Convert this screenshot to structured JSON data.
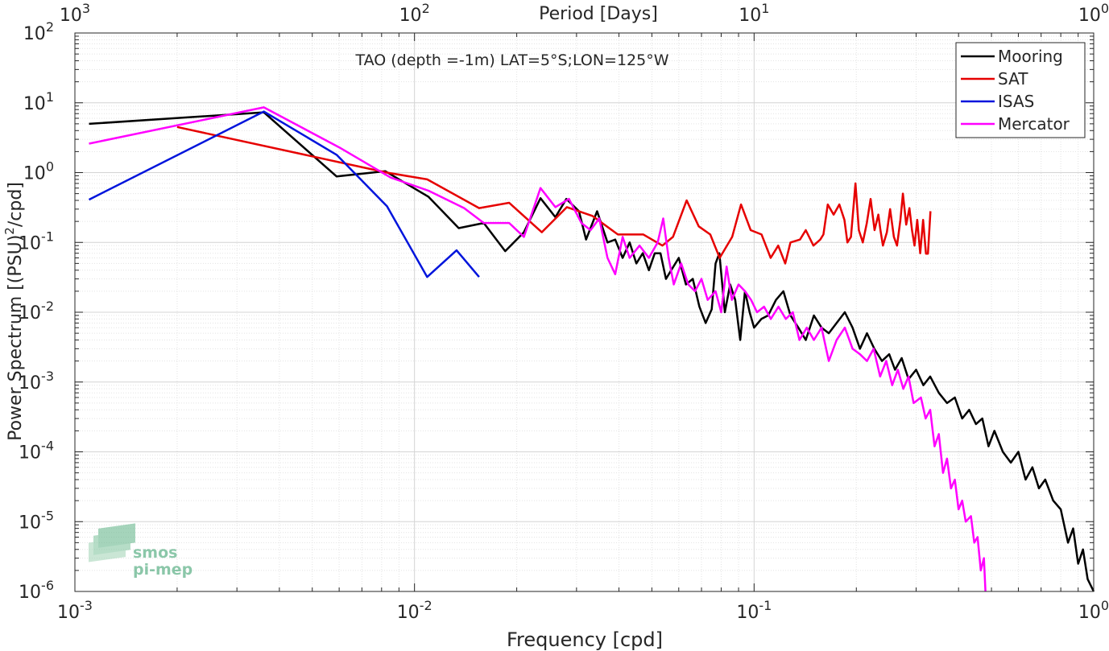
{
  "chart_data": {
    "type": "line",
    "title": "TAO (depth =-1m) LAT=5°S;LON=125°W",
    "xlabel": "Frequency [cpd]",
    "ylabel": "Power Spectrum [(PSU)²/cpd]",
    "ylabel_base": "Power Spectrum [(PSU)",
    "ylabel_sup": "2",
    "ylabel_tail": "/cpd]",
    "top_xlabel": "Period [Days]",
    "xscale": "log",
    "yscale": "log",
    "xlim": [
      0.001,
      1
    ],
    "ylim": [
      1e-06,
      100
    ],
    "grid": true,
    "legend_position": "top-right",
    "x_ticks": [
      {
        "value": 0.001,
        "base": "10",
        "exp": "-3"
      },
      {
        "value": 0.01,
        "base": "10",
        "exp": "-2"
      },
      {
        "value": 0.1,
        "base": "10",
        "exp": "-1"
      },
      {
        "value": 1,
        "base": "10",
        "exp": "0"
      }
    ],
    "top_ticks": [
      {
        "value": 1000,
        "base": "10",
        "exp": "3"
      },
      {
        "value": 100,
        "base": "10",
        "exp": "2"
      },
      {
        "value": 10,
        "base": "10",
        "exp": "1"
      },
      {
        "value": 1,
        "base": "10",
        "exp": "0"
      }
    ],
    "y_ticks": [
      {
        "value": 1e-06,
        "base": "10",
        "exp": "-6"
      },
      {
        "value": 1e-05,
        "base": "10",
        "exp": "-5"
      },
      {
        "value": 0.0001,
        "base": "10",
        "exp": "-4"
      },
      {
        "value": 0.001,
        "base": "10",
        "exp": "-3"
      },
      {
        "value": 0.01,
        "base": "10",
        "exp": "-2"
      },
      {
        "value": 0.1,
        "base": "10",
        "exp": "-1"
      },
      {
        "value": 1,
        "base": "10",
        "exp": "0"
      },
      {
        "value": 10,
        "base": "10",
        "exp": "1"
      },
      {
        "value": 100,
        "base": "10",
        "exp": "2"
      }
    ],
    "series": [
      {
        "name": "Mooring",
        "color": "#000000",
        "points": [
          [
            0.0011,
            5.0
          ],
          [
            0.0036,
            7.3
          ],
          [
            0.0059,
            0.88
          ],
          [
            0.0082,
            1.05
          ],
          [
            0.011,
            0.45
          ],
          [
            0.0135,
            0.16
          ],
          [
            0.016,
            0.19
          ],
          [
            0.0185,
            0.075
          ],
          [
            0.021,
            0.14
          ],
          [
            0.0235,
            0.43
          ],
          [
            0.026,
            0.23
          ],
          [
            0.028,
            0.42
          ],
          [
            0.0305,
            0.28
          ],
          [
            0.032,
            0.11
          ],
          [
            0.0345,
            0.28
          ],
          [
            0.037,
            0.1
          ],
          [
            0.039,
            0.11
          ],
          [
            0.041,
            0.06
          ],
          [
            0.043,
            0.1
          ],
          [
            0.045,
            0.05
          ],
          [
            0.047,
            0.07
          ],
          [
            0.049,
            0.04
          ],
          [
            0.051,
            0.07
          ],
          [
            0.053,
            0.07
          ],
          [
            0.055,
            0.03
          ],
          [
            0.057,
            0.04
          ],
          [
            0.06,
            0.06
          ],
          [
            0.063,
            0.025
          ],
          [
            0.066,
            0.03
          ],
          [
            0.069,
            0.012
          ],
          [
            0.072,
            0.007
          ],
          [
            0.075,
            0.011
          ],
          [
            0.077,
            0.05
          ],
          [
            0.079,
            0.07
          ],
          [
            0.082,
            0.01
          ],
          [
            0.085,
            0.025
          ],
          [
            0.088,
            0.015
          ],
          [
            0.091,
            0.004
          ],
          [
            0.094,
            0.02
          ],
          [
            0.097,
            0.01
          ],
          [
            0.1,
            0.006
          ],
          [
            0.105,
            0.008
          ],
          [
            0.11,
            0.009
          ],
          [
            0.116,
            0.015
          ],
          [
            0.122,
            0.02
          ],
          [
            0.128,
            0.009
          ],
          [
            0.135,
            0.006
          ],
          [
            0.142,
            0.004
          ],
          [
            0.15,
            0.009
          ],
          [
            0.158,
            0.006
          ],
          [
            0.166,
            0.005
          ],
          [
            0.175,
            0.007
          ],
          [
            0.185,
            0.01
          ],
          [
            0.195,
            0.006
          ],
          [
            0.205,
            0.003
          ],
          [
            0.215,
            0.005
          ],
          [
            0.226,
            0.003
          ],
          [
            0.238,
            0.002
          ],
          [
            0.25,
            0.0025
          ],
          [
            0.26,
            0.0015
          ],
          [
            0.272,
            0.0022
          ],
          [
            0.285,
            0.0011
          ],
          [
            0.3,
            0.0015
          ],
          [
            0.315,
            0.0009
          ],
          [
            0.33,
            0.0012
          ],
          [
            0.35,
            0.0007
          ],
          [
            0.37,
            0.0005
          ],
          [
            0.39,
            0.0006
          ],
          [
            0.41,
            0.0003
          ],
          [
            0.43,
            0.0004
          ],
          [
            0.45,
            0.00025
          ],
          [
            0.47,
            0.0003
          ],
          [
            0.49,
            0.00012
          ],
          [
            0.51,
            0.0002
          ],
          [
            0.54,
            0.0001
          ],
          [
            0.57,
            7e-05
          ],
          [
            0.6,
            0.0001
          ],
          [
            0.63,
            4e-05
          ],
          [
            0.66,
            6e-05
          ],
          [
            0.69,
            3e-05
          ],
          [
            0.72,
            4e-05
          ],
          [
            0.76,
            2e-05
          ],
          [
            0.8,
            1.5e-05
          ],
          [
            0.84,
            5e-06
          ],
          [
            0.87,
            8e-06
          ],
          [
            0.9,
            2.5e-06
          ],
          [
            0.93,
            4e-06
          ],
          [
            0.96,
            1.5e-06
          ],
          [
            1.0,
            1e-06
          ]
        ]
      },
      {
        "name": "SAT",
        "color": "#e60000",
        "points": [
          [
            0.002,
            4.5
          ],
          [
            0.0083,
            1.0
          ],
          [
            0.0109,
            0.8
          ],
          [
            0.0155,
            0.31
          ],
          [
            0.019,
            0.37
          ],
          [
            0.0237,
            0.14
          ],
          [
            0.0281,
            0.32
          ],
          [
            0.0334,
            0.24
          ],
          [
            0.0397,
            0.13
          ],
          [
            0.0472,
            0.13
          ],
          [
            0.0537,
            0.09
          ],
          [
            0.0577,
            0.12
          ],
          [
            0.0633,
            0.4
          ],
          [
            0.0687,
            0.17
          ],
          [
            0.0743,
            0.13
          ],
          [
            0.0792,
            0.06
          ],
          [
            0.0862,
            0.12
          ],
          [
            0.0915,
            0.35
          ],
          [
            0.0977,
            0.15
          ],
          [
            0.1052,
            0.13
          ],
          [
            0.1119,
            0.06
          ],
          [
            0.1178,
            0.09
          ],
          [
            0.1235,
            0.05
          ],
          [
            0.128,
            0.1
          ],
          [
            0.1365,
            0.11
          ],
          [
            0.142,
            0.15
          ],
          [
            0.1495,
            0.09
          ],
          [
            0.1566,
            0.11
          ],
          [
            0.16,
            0.13
          ],
          [
            0.1648,
            0.35
          ],
          [
            0.1715,
            0.25
          ],
          [
            0.1783,
            0.35
          ],
          [
            0.1845,
            0.21
          ],
          [
            0.1883,
            0.1
          ],
          [
            0.1928,
            0.12
          ],
          [
            0.1988,
            0.7
          ],
          [
            0.2035,
            0.15
          ],
          [
            0.209,
            0.1
          ],
          [
            0.2147,
            0.19
          ],
          [
            0.2203,
            0.42
          ],
          [
            0.2263,
            0.15
          ],
          [
            0.2322,
            0.25
          ],
          [
            0.2355,
            0.15
          ],
          [
            0.2395,
            0.09
          ],
          [
            0.246,
            0.14
          ],
          [
            0.2515,
            0.3
          ],
          [
            0.258,
            0.12
          ],
          [
            0.2635,
            0.09
          ],
          [
            0.2697,
            0.21
          ],
          [
            0.2743,
            0.5
          ],
          [
            0.2805,
            0.18
          ],
          [
            0.2867,
            0.31
          ],
          [
            0.2917,
            0.15
          ],
          [
            0.2967,
            0.09
          ],
          [
            0.3023,
            0.21
          ],
          [
            0.3085,
            0.07
          ],
          [
            0.3145,
            0.21
          ],
          [
            0.3207,
            0.069
          ],
          [
            0.325,
            0.069
          ],
          [
            0.3305,
            0.28
          ]
        ]
      },
      {
        "name": "ISAS",
        "color": "#0014dc",
        "points": [
          [
            0.0011,
            0.41
          ],
          [
            0.0036,
            7.5
          ],
          [
            0.0059,
            1.8
          ],
          [
            0.0083,
            0.33
          ],
          [
            0.0109,
            0.032
          ],
          [
            0.0133,
            0.077
          ],
          [
            0.0155,
            0.032
          ]
        ]
      },
      {
        "name": "Mercator",
        "color": "#ff00ff",
        "points": [
          [
            0.0011,
            2.6
          ],
          [
            0.0036,
            8.6
          ],
          [
            0.006,
            2.3
          ],
          [
            0.0085,
            0.85
          ],
          [
            0.011,
            0.55
          ],
          [
            0.014,
            0.31
          ],
          [
            0.016,
            0.19
          ],
          [
            0.019,
            0.19
          ],
          [
            0.021,
            0.12
          ],
          [
            0.0235,
            0.6
          ],
          [
            0.026,
            0.32
          ],
          [
            0.0285,
            0.42
          ],
          [
            0.031,
            0.19
          ],
          [
            0.033,
            0.15
          ],
          [
            0.035,
            0.22
          ],
          [
            0.037,
            0.06
          ],
          [
            0.039,
            0.035
          ],
          [
            0.041,
            0.12
          ],
          [
            0.043,
            0.06
          ],
          [
            0.046,
            0.09
          ],
          [
            0.049,
            0.06
          ],
          [
            0.052,
            0.1
          ],
          [
            0.054,
            0.22
          ],
          [
            0.056,
            0.06
          ],
          [
            0.058,
            0.025
          ],
          [
            0.061,
            0.05
          ],
          [
            0.064,
            0.025
          ],
          [
            0.067,
            0.02
          ],
          [
            0.07,
            0.03
          ],
          [
            0.073,
            0.015
          ],
          [
            0.077,
            0.02
          ],
          [
            0.08,
            0.01
          ],
          [
            0.083,
            0.045
          ],
          [
            0.086,
            0.015
          ],
          [
            0.09,
            0.025
          ],
          [
            0.094,
            0.02
          ],
          [
            0.098,
            0.015
          ],
          [
            0.102,
            0.01
          ],
          [
            0.107,
            0.012
          ],
          [
            0.112,
            0.008
          ],
          [
            0.118,
            0.012
          ],
          [
            0.124,
            0.008
          ],
          [
            0.13,
            0.01
          ],
          [
            0.136,
            0.004
          ],
          [
            0.143,
            0.006
          ],
          [
            0.15,
            0.004
          ],
          [
            0.158,
            0.006
          ],
          [
            0.166,
            0.002
          ],
          [
            0.175,
            0.004
          ],
          [
            0.185,
            0.006
          ],
          [
            0.195,
            0.003
          ],
          [
            0.205,
            0.0025
          ],
          [
            0.215,
            0.002
          ],
          [
            0.225,
            0.003
          ],
          [
            0.235,
            0.0012
          ],
          [
            0.245,
            0.002
          ],
          [
            0.255,
            0.0009
          ],
          [
            0.265,
            0.0015
          ],
          [
            0.275,
            0.0008
          ],
          [
            0.285,
            0.0012
          ],
          [
            0.295,
            0.0005
          ],
          [
            0.31,
            0.0006
          ],
          [
            0.32,
            0.0003
          ],
          [
            0.33,
            0.0004
          ],
          [
            0.34,
            0.00012
          ],
          [
            0.35,
            0.00018
          ],
          [
            0.36,
            5e-05
          ],
          [
            0.37,
            8e-05
          ],
          [
            0.38,
            3e-05
          ],
          [
            0.39,
            4e-05
          ],
          [
            0.4,
            1.5e-05
          ],
          [
            0.41,
            2e-05
          ],
          [
            0.42,
            1e-05
          ],
          [
            0.435,
            1.2e-05
          ],
          [
            0.445,
            5e-06
          ],
          [
            0.455,
            6e-06
          ],
          [
            0.465,
            2e-06
          ],
          [
            0.475,
            3e-06
          ],
          [
            0.48,
            1e-06
          ]
        ]
      }
    ],
    "watermark": {
      "text_line1": "smos",
      "text_line2": "pi-mep",
      "color": "#2e9a64"
    }
  }
}
